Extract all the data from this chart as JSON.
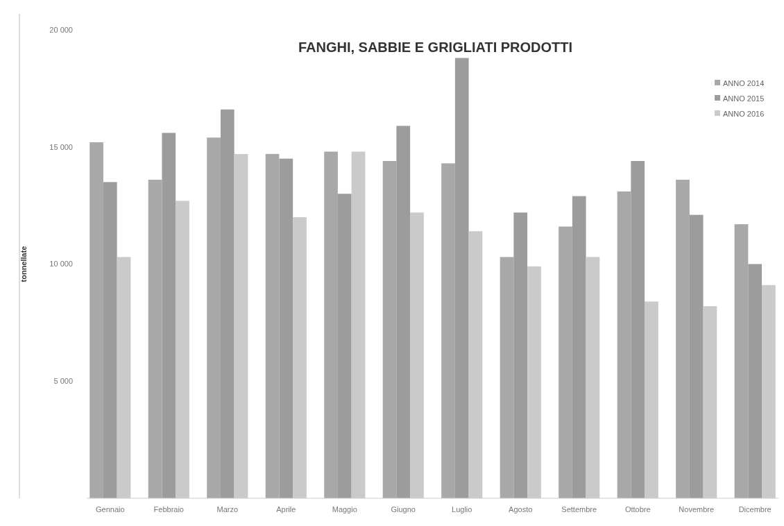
{
  "chart_data": {
    "type": "bar",
    "title": "FANGHI, SABBIE E GRIGLIATI PRODOTTI",
    "ylabel": "tonnellate",
    "categories": [
      "Gennaio",
      "Febbraio",
      "Marzo",
      "Aprile",
      "Maggio",
      "Giugno",
      "Luglio",
      "Agosto",
      "Settembre",
      "Ottobre",
      "Novembre",
      "Dicembre"
    ],
    "series": [
      {
        "name": "ANNO 2014",
        "color": "#a8a8a8",
        "values": [
          15200,
          13600,
          15400,
          14700,
          14800,
          14400,
          14300,
          10300,
          11600,
          13100,
          13600,
          11700
        ]
      },
      {
        "name": "ANNO 2015",
        "color": "#9c9c9c",
        "values": [
          13500,
          15600,
          16600,
          14500,
          13000,
          15900,
          18800,
          12200,
          12900,
          14400,
          12100,
          10000
        ]
      },
      {
        "name": "ANNO 2016",
        "color": "#cacaca",
        "values": [
          10300,
          12700,
          14700,
          12000,
          14800,
          12200,
          11400,
          9900,
          10300,
          8400,
          8200,
          9100
        ]
      }
    ],
    "ylim": [
      0,
      20000
    ],
    "yticks": [
      {
        "value": 5000,
        "label": "5 000"
      },
      {
        "value": 10000,
        "label": "10 000"
      },
      {
        "value": 15000,
        "label": "15 000"
      },
      {
        "value": 20000,
        "label": "20 000"
      }
    ],
    "grid": false,
    "legend": "top right"
  }
}
